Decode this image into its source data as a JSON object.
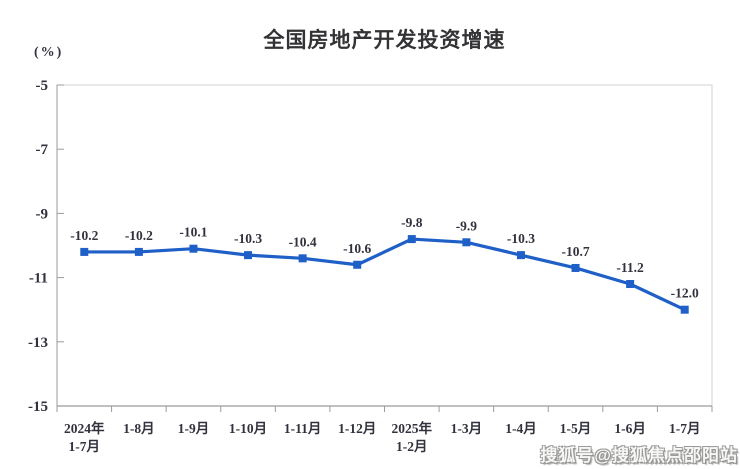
{
  "title": "全国房地产开发投资增速",
  "unit_label": "(%)",
  "watermark": "搜狐号@搜狐焦点邵阳站",
  "colors": {
    "line": "#1E5FC8",
    "marker": "#1E5FC8",
    "label_text": "#32323E",
    "axis_line": "#9B9B9B",
    "border_light": "#D2D2D2",
    "title_text": "#333336"
  },
  "chart_data": {
    "type": "line",
    "title": "全国房地产开发投资增速",
    "ylabel": "(%)",
    "categories": [
      "2024年\n1-7月",
      "1-8月",
      "1-9月",
      "1-10月",
      "1-11月",
      "1-12月",
      "2025年\n1-2月",
      "1-3月",
      "1-4月",
      "1-5月",
      "1-6月",
      "1-7月"
    ],
    "values": [
      -10.2,
      -10.2,
      -10.1,
      -10.3,
      -10.4,
      -10.6,
      -9.8,
      -9.9,
      -10.3,
      -10.7,
      -11.2,
      -12.0
    ],
    "data_labels": [
      "-10.2",
      "-10.2",
      "-10.1",
      "-10.3",
      "-10.4",
      "-10.6",
      "-9.8",
      "-9.9",
      "-10.3",
      "-10.7",
      "-11.2",
      "-12.0"
    ],
    "ylim": [
      -15,
      -5
    ],
    "yticks": [
      -5,
      -7,
      -9,
      -11,
      -13,
      -15
    ],
    "grid": false,
    "legend": "none",
    "marker": "square"
  }
}
